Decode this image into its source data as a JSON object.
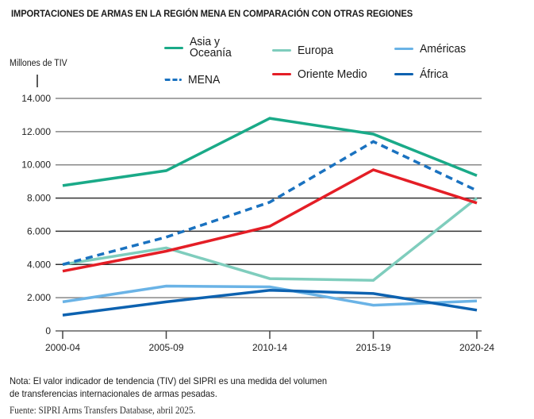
{
  "chart_data": {
    "type": "line",
    "title": "IMPORTACIONES DE ARMAS EN LA REGIÓN MENA EN COMPARACIÓN CON OTRAS REGIONES",
    "xlabel": "",
    "ylabel": "Millones de TIV",
    "categories": [
      "2000-04",
      "2005-09",
      "2010-14",
      "2015-19",
      "2020-24"
    ],
    "ylim": [
      0,
      14000
    ],
    "yticks": [
      0,
      2000,
      4000,
      6000,
      8000,
      10000,
      12000,
      14000
    ],
    "ytick_labels": [
      "0",
      "2.000",
      "4.000",
      "6.000",
      "8.000",
      "10.000",
      "12.000",
      "14.000"
    ],
    "grid": true,
    "legend_position": "top",
    "series": [
      {
        "name": "Asia y Oceanía",
        "label_lines": [
          "Asia y",
          "Oceanía"
        ],
        "color": "#1aaa88",
        "dashed": false,
        "values": [
          8750,
          9650,
          12800,
          11850,
          9350
        ]
      },
      {
        "name": "MENA",
        "label_lines": [
          "MENA"
        ],
        "color": "#1a72c0",
        "dashed": true,
        "values": [
          4000,
          5650,
          7750,
          11400,
          8450
        ]
      },
      {
        "name": "Europa",
        "label_lines": [
          "Europa"
        ],
        "color": "#7fcdbd",
        "dashed": false,
        "values": [
          4000,
          5000,
          3150,
          3050,
          8000
        ]
      },
      {
        "name": "Oriente Medio",
        "label_lines": [
          "Oriente Medio"
        ],
        "color": "#e41e26",
        "dashed": false,
        "values": [
          3600,
          4800,
          6300,
          9700,
          7700
        ]
      },
      {
        "name": "Américas",
        "label_lines": [
          "Américas"
        ],
        "color": "#6ab3e6",
        "dashed": false,
        "values": [
          1750,
          2700,
          2650,
          1550,
          1800
        ]
      },
      {
        "name": "África",
        "label_lines": [
          "África"
        ],
        "color": "#0d62b0",
        "dashed": false,
        "values": [
          950,
          1750,
          2450,
          2250,
          1250
        ]
      }
    ]
  },
  "note": {
    "line1": "Nota: El valor indicador de tendencia (TIV) del SIPRI es una medida del volumen",
    "line2": "de transferencias internacionales de armas pesadas."
  },
  "source": "Fuente: SIPRI Arms Transfers Database, abril 2025."
}
